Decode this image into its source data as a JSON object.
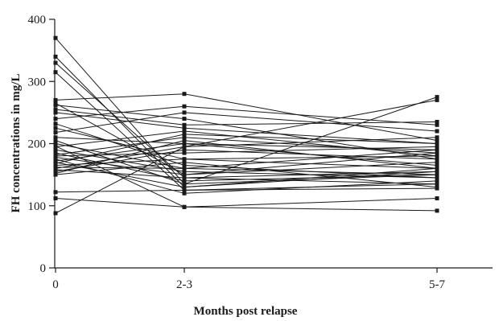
{
  "chart_data": {
    "type": "line",
    "categories": [
      "0",
      "2-3",
      "5-7"
    ],
    "xlabel": "Months post relapse",
    "ylabel": "FH concentrations in mg/L",
    "ylim": [
      0,
      400
    ],
    "yticks": [
      "0",
      "100",
      "200",
      "300",
      "400"
    ],
    "grid": false,
    "legend": "none",
    "line_color": "#1a1a1a",
    "series": [
      {
        "values": [
          370,
          135,
          150
        ]
      },
      {
        "values": [
          340,
          130,
          160
        ]
      },
      {
        "values": [
          330,
          145,
          155
        ]
      },
      {
        "values": [
          315,
          125,
          135
        ]
      },
      {
        "values": [
          270,
          280,
          205
        ]
      },
      {
        "values": [
          265,
          150,
          185
        ]
      },
      {
        "values": [
          262,
          240,
          175
        ]
      },
      {
        "values": [
          255,
          230,
          235
        ]
      },
      {
        "values": [
          250,
          225,
          200
        ]
      },
      {
        "values": [
          240,
          260,
          230
        ]
      },
      {
        "values": [
          232,
          165,
          145
        ]
      },
      {
        "values": [
          225,
          175,
          160
        ]
      },
      {
        "values": [
          218,
          250,
          220
        ]
      },
      {
        "values": [
          210,
          200,
          190
        ]
      },
      {
        "values": [
          205,
          135,
          275
        ]
      },
      {
        "values": [
          200,
          160,
          190
        ]
      },
      {
        "values": [
          195,
          220,
          180
        ]
      },
      {
        "values": [
          190,
          155,
          145
        ]
      },
      {
        "values": [
          185,
          140,
          150
        ]
      },
      {
        "values": [
          182,
          210,
          185
        ]
      },
      {
        "values": [
          180,
          185,
          195
        ]
      },
      {
        "values": [
          178,
          150,
          170
        ]
      },
      {
        "values": [
          175,
          120,
          140
        ]
      },
      {
        "values": [
          172,
          200,
          165
        ]
      },
      {
        "values": [
          170,
          130,
          155
        ]
      },
      {
        "values": [
          168,
          215,
          200
        ]
      },
      {
        "values": [
          165,
          175,
          180
        ]
      },
      {
        "values": [
          162,
          160,
          150
        ]
      },
      {
        "values": [
          160,
          195,
          210
        ]
      },
      {
        "values": [
          158,
          145,
          135
        ]
      },
      {
        "values": [
          155,
          190,
          175
        ]
      },
      {
        "values": [
          152,
          205,
          160
        ]
      },
      {
        "values": [
          150,
          170,
          130
        ]
      },
      {
        "values": [
          122,
          125,
          128
        ]
      },
      {
        "values": [
          112,
          98,
          112
        ]
      },
      {
        "values": [
          88,
          195,
          270
        ]
      },
      {
        "values": [
          196,
          98,
          92
        ]
      }
    ]
  }
}
